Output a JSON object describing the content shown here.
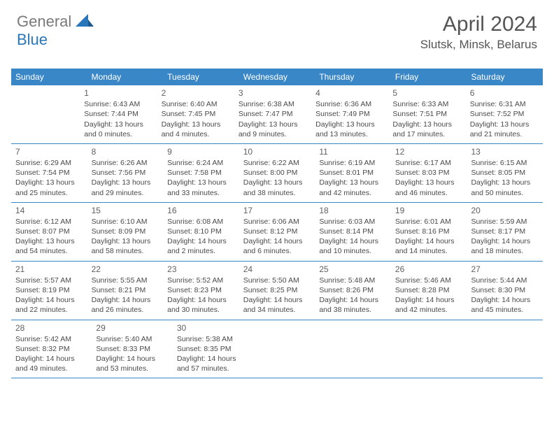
{
  "brand": {
    "part1": "General",
    "part2": "Blue"
  },
  "title": "April 2024",
  "location": "Slutsk, Minsk, Belarus",
  "colors": {
    "header_bg": "#3a87c8",
    "header_text": "#ffffff",
    "border": "#3a87c8",
    "body_text": "#4a4a4a",
    "title_text": "#555555",
    "logo_gray": "#7a7a7a",
    "logo_blue": "#2976bb"
  },
  "day_names": [
    "Sunday",
    "Monday",
    "Tuesday",
    "Wednesday",
    "Thursday",
    "Friday",
    "Saturday"
  ],
  "weeks": [
    [
      null,
      {
        "n": "1",
        "sr": "Sunrise: 6:43 AM",
        "ss": "Sunset: 7:44 PM",
        "d1": "Daylight: 13 hours",
        "d2": "and 0 minutes."
      },
      {
        "n": "2",
        "sr": "Sunrise: 6:40 AM",
        "ss": "Sunset: 7:45 PM",
        "d1": "Daylight: 13 hours",
        "d2": "and 4 minutes."
      },
      {
        "n": "3",
        "sr": "Sunrise: 6:38 AM",
        "ss": "Sunset: 7:47 PM",
        "d1": "Daylight: 13 hours",
        "d2": "and 9 minutes."
      },
      {
        "n": "4",
        "sr": "Sunrise: 6:36 AM",
        "ss": "Sunset: 7:49 PM",
        "d1": "Daylight: 13 hours",
        "d2": "and 13 minutes."
      },
      {
        "n": "5",
        "sr": "Sunrise: 6:33 AM",
        "ss": "Sunset: 7:51 PM",
        "d1": "Daylight: 13 hours",
        "d2": "and 17 minutes."
      },
      {
        "n": "6",
        "sr": "Sunrise: 6:31 AM",
        "ss": "Sunset: 7:52 PM",
        "d1": "Daylight: 13 hours",
        "d2": "and 21 minutes."
      }
    ],
    [
      {
        "n": "7",
        "sr": "Sunrise: 6:29 AM",
        "ss": "Sunset: 7:54 PM",
        "d1": "Daylight: 13 hours",
        "d2": "and 25 minutes."
      },
      {
        "n": "8",
        "sr": "Sunrise: 6:26 AM",
        "ss": "Sunset: 7:56 PM",
        "d1": "Daylight: 13 hours",
        "d2": "and 29 minutes."
      },
      {
        "n": "9",
        "sr": "Sunrise: 6:24 AM",
        "ss": "Sunset: 7:58 PM",
        "d1": "Daylight: 13 hours",
        "d2": "and 33 minutes."
      },
      {
        "n": "10",
        "sr": "Sunrise: 6:22 AM",
        "ss": "Sunset: 8:00 PM",
        "d1": "Daylight: 13 hours",
        "d2": "and 38 minutes."
      },
      {
        "n": "11",
        "sr": "Sunrise: 6:19 AM",
        "ss": "Sunset: 8:01 PM",
        "d1": "Daylight: 13 hours",
        "d2": "and 42 minutes."
      },
      {
        "n": "12",
        "sr": "Sunrise: 6:17 AM",
        "ss": "Sunset: 8:03 PM",
        "d1": "Daylight: 13 hours",
        "d2": "and 46 minutes."
      },
      {
        "n": "13",
        "sr": "Sunrise: 6:15 AM",
        "ss": "Sunset: 8:05 PM",
        "d1": "Daylight: 13 hours",
        "d2": "and 50 minutes."
      }
    ],
    [
      {
        "n": "14",
        "sr": "Sunrise: 6:12 AM",
        "ss": "Sunset: 8:07 PM",
        "d1": "Daylight: 13 hours",
        "d2": "and 54 minutes."
      },
      {
        "n": "15",
        "sr": "Sunrise: 6:10 AM",
        "ss": "Sunset: 8:09 PM",
        "d1": "Daylight: 13 hours",
        "d2": "and 58 minutes."
      },
      {
        "n": "16",
        "sr": "Sunrise: 6:08 AM",
        "ss": "Sunset: 8:10 PM",
        "d1": "Daylight: 14 hours",
        "d2": "and 2 minutes."
      },
      {
        "n": "17",
        "sr": "Sunrise: 6:06 AM",
        "ss": "Sunset: 8:12 PM",
        "d1": "Daylight: 14 hours",
        "d2": "and 6 minutes."
      },
      {
        "n": "18",
        "sr": "Sunrise: 6:03 AM",
        "ss": "Sunset: 8:14 PM",
        "d1": "Daylight: 14 hours",
        "d2": "and 10 minutes."
      },
      {
        "n": "19",
        "sr": "Sunrise: 6:01 AM",
        "ss": "Sunset: 8:16 PM",
        "d1": "Daylight: 14 hours",
        "d2": "and 14 minutes."
      },
      {
        "n": "20",
        "sr": "Sunrise: 5:59 AM",
        "ss": "Sunset: 8:17 PM",
        "d1": "Daylight: 14 hours",
        "d2": "and 18 minutes."
      }
    ],
    [
      {
        "n": "21",
        "sr": "Sunrise: 5:57 AM",
        "ss": "Sunset: 8:19 PM",
        "d1": "Daylight: 14 hours",
        "d2": "and 22 minutes."
      },
      {
        "n": "22",
        "sr": "Sunrise: 5:55 AM",
        "ss": "Sunset: 8:21 PM",
        "d1": "Daylight: 14 hours",
        "d2": "and 26 minutes."
      },
      {
        "n": "23",
        "sr": "Sunrise: 5:52 AM",
        "ss": "Sunset: 8:23 PM",
        "d1": "Daylight: 14 hours",
        "d2": "and 30 minutes."
      },
      {
        "n": "24",
        "sr": "Sunrise: 5:50 AM",
        "ss": "Sunset: 8:25 PM",
        "d1": "Daylight: 14 hours",
        "d2": "and 34 minutes."
      },
      {
        "n": "25",
        "sr": "Sunrise: 5:48 AM",
        "ss": "Sunset: 8:26 PM",
        "d1": "Daylight: 14 hours",
        "d2": "and 38 minutes."
      },
      {
        "n": "26",
        "sr": "Sunrise: 5:46 AM",
        "ss": "Sunset: 8:28 PM",
        "d1": "Daylight: 14 hours",
        "d2": "and 42 minutes."
      },
      {
        "n": "27",
        "sr": "Sunrise: 5:44 AM",
        "ss": "Sunset: 8:30 PM",
        "d1": "Daylight: 14 hours",
        "d2": "and 45 minutes."
      }
    ],
    [
      {
        "n": "28",
        "sr": "Sunrise: 5:42 AM",
        "ss": "Sunset: 8:32 PM",
        "d1": "Daylight: 14 hours",
        "d2": "and 49 minutes."
      },
      {
        "n": "29",
        "sr": "Sunrise: 5:40 AM",
        "ss": "Sunset: 8:33 PM",
        "d1": "Daylight: 14 hours",
        "d2": "and 53 minutes."
      },
      {
        "n": "30",
        "sr": "Sunrise: 5:38 AM",
        "ss": "Sunset: 8:35 PM",
        "d1": "Daylight: 14 hours",
        "d2": "and 57 minutes."
      },
      null,
      null,
      null,
      null
    ]
  ]
}
